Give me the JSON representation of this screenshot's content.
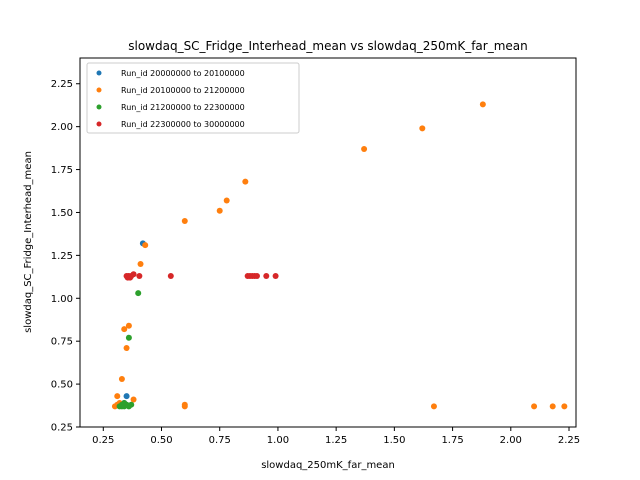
{
  "chart_data": {
    "type": "scatter",
    "title": "slowdaq_SC_Fridge_Interhead_mean vs slowdaq_250mK_far_mean",
    "xlabel": "slowdaq_250mK_far_mean",
    "ylabel": "slowdaq_SC_Fridge_Interhead_mean",
    "xlim": [
      0.15,
      2.28
    ],
    "ylim": [
      0.25,
      2.4
    ],
    "xticks": [
      "0.25",
      "0.50",
      "0.75",
      "1.00",
      "1.25",
      "1.50",
      "1.75",
      "2.00",
      "2.25"
    ],
    "yticks": [
      "0.25",
      "0.50",
      "0.75",
      "1.00",
      "1.25",
      "1.50",
      "1.75",
      "2.00",
      "2.25"
    ],
    "grid": false,
    "legend_position": "top-left",
    "series": [
      {
        "name": "Run_id 20000000 to 20100000",
        "color": "#1f77b4",
        "points": [
          [
            0.42,
            1.32
          ],
          [
            0.35,
            0.43
          ],
          [
            0.33,
            0.38
          ],
          [
            0.34,
            0.39
          ]
        ]
      },
      {
        "name": "Run_id 20100000 to 21200000",
        "color": "#ff7f0e",
        "points": [
          [
            1.88,
            2.13
          ],
          [
            1.62,
            1.99
          ],
          [
            1.37,
            1.87
          ],
          [
            0.86,
            1.68
          ],
          [
            0.78,
            1.57
          ],
          [
            0.75,
            1.51
          ],
          [
            0.6,
            1.45
          ],
          [
            0.43,
            1.31
          ],
          [
            0.41,
            1.2
          ],
          [
            0.36,
            0.84
          ],
          [
            0.34,
            0.82
          ],
          [
            0.35,
            0.71
          ],
          [
            0.33,
            0.53
          ],
          [
            0.31,
            0.43
          ],
          [
            0.38,
            0.41
          ],
          [
            0.32,
            0.39
          ],
          [
            0.3,
            0.37
          ],
          [
            0.31,
            0.38
          ],
          [
            0.6,
            0.38
          ],
          [
            0.6,
            0.37
          ],
          [
            1.67,
            0.37
          ],
          [
            2.1,
            0.37
          ],
          [
            2.18,
            0.37
          ],
          [
            2.23,
            0.37
          ]
        ]
      },
      {
        "name": "Run_id 21200000 to 22300000",
        "color": "#2ca02c",
        "points": [
          [
            0.4,
            1.03
          ],
          [
            0.36,
            0.77
          ],
          [
            0.32,
            0.37
          ],
          [
            0.33,
            0.38
          ],
          [
            0.34,
            0.37
          ],
          [
            0.35,
            0.38
          ],
          [
            0.36,
            0.37
          ],
          [
            0.37,
            0.38
          ],
          [
            0.34,
            0.39
          ],
          [
            0.33,
            0.37
          ]
        ]
      },
      {
        "name": "Run_id 22300000 to 30000000",
        "color": "#d62728",
        "points": [
          [
            0.35,
            1.13
          ],
          [
            0.355,
            1.12
          ],
          [
            0.36,
            1.13
          ],
          [
            0.365,
            1.12
          ],
          [
            0.37,
            1.13
          ],
          [
            0.38,
            1.14
          ],
          [
            0.405,
            1.13
          ],
          [
            0.54,
            1.13
          ],
          [
            0.87,
            1.13
          ],
          [
            0.88,
            1.13
          ],
          [
            0.89,
            1.13
          ],
          [
            0.9,
            1.13
          ],
          [
            0.91,
            1.13
          ],
          [
            0.95,
            1.13
          ],
          [
            0.99,
            1.13
          ]
        ]
      }
    ]
  }
}
